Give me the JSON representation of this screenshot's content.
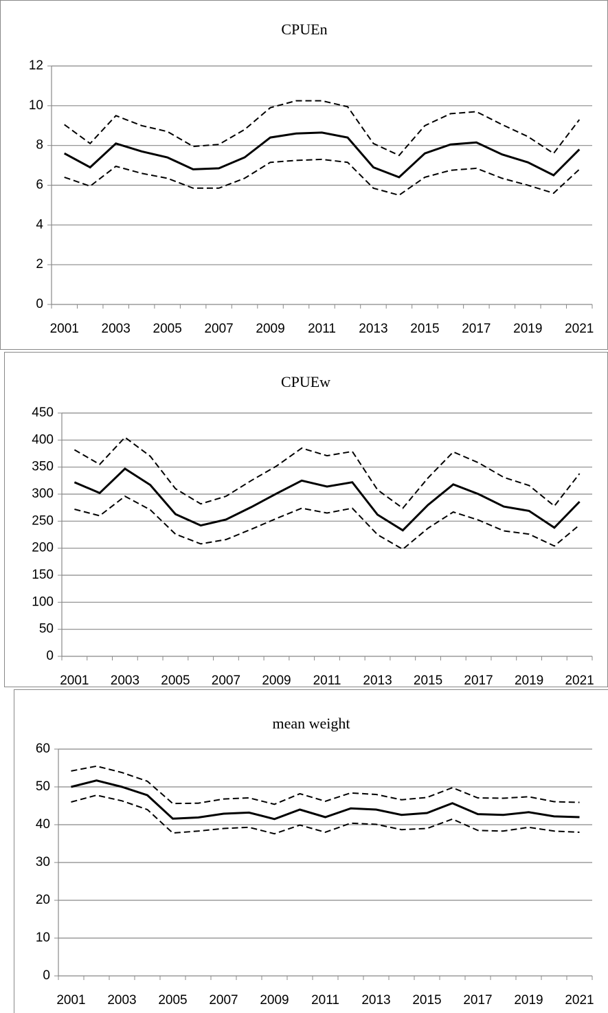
{
  "chart_data": [
    {
      "type": "line",
      "title": "CPUEn",
      "categories": [
        "2001",
        null,
        "2003",
        null,
        "2005",
        null,
        "2007",
        null,
        "2009",
        null,
        "2011",
        null,
        "2013",
        null,
        "2015",
        null,
        "2017",
        null,
        "2019",
        null,
        "2021"
      ],
      "ylim": [
        0,
        12
      ],
      "yticks": [
        0,
        2,
        4,
        6,
        8,
        10,
        12
      ],
      "grid": true,
      "series": [
        {
          "color": "#000000",
          "style": "solid",
          "values": [
            7.6,
            6.9,
            8.1,
            7.7,
            7.4,
            6.8,
            6.85,
            7.4,
            8.4,
            8.6,
            8.65,
            8.4,
            6.9,
            6.4,
            7.6,
            8.05,
            8.15,
            7.55,
            7.15,
            6.5,
            7.8
          ]
        },
        {
          "color": "#000000",
          "style": "dashed",
          "values": [
            9.05,
            8.1,
            9.5,
            9.0,
            8.7,
            7.95,
            8.05,
            8.8,
            9.9,
            10.25,
            10.25,
            9.95,
            8.1,
            7.5,
            9.0,
            9.6,
            9.7,
            9.05,
            8.45,
            7.6,
            9.3
          ]
        },
        {
          "color": "#000000",
          "style": "dashed",
          "values": [
            6.4,
            5.95,
            6.95,
            6.6,
            6.35,
            5.85,
            5.85,
            6.35,
            7.15,
            7.25,
            7.3,
            7.15,
            5.85,
            5.5,
            6.4,
            6.75,
            6.85,
            6.35,
            6.0,
            5.6,
            6.8
          ]
        }
      ]
    },
    {
      "type": "line",
      "title": "CPUEw",
      "categories": [
        "2001",
        null,
        "2003",
        null,
        "2005",
        null,
        "2007",
        null,
        "2009",
        null,
        "2011",
        null,
        "2013",
        null,
        "2015",
        null,
        "2017",
        null,
        "2019",
        null,
        "2021"
      ],
      "ylim": [
        0,
        450
      ],
      "yticks": [
        0,
        50,
        100,
        150,
        200,
        250,
        300,
        350,
        400,
        450
      ],
      "grid": true,
      "series": [
        {
          "color": "#000000",
          "style": "solid",
          "values": [
            322,
            302,
            347,
            317,
            263,
            242,
            253,
            276,
            301,
            325,
            314,
            322,
            262,
            233,
            280,
            318,
            300,
            277,
            269,
            238,
            286
          ]
        },
        {
          "color": "#000000",
          "style": "dashed",
          "values": [
            382,
            355,
            405,
            370,
            310,
            282,
            296,
            325,
            352,
            385,
            371,
            379,
            308,
            274,
            330,
            378,
            358,
            331,
            316,
            278,
            338
          ]
        },
        {
          "color": "#000000",
          "style": "dashed",
          "values": [
            272,
            260,
            296,
            271,
            226,
            208,
            216,
            235,
            255,
            274,
            265,
            274,
            225,
            198,
            237,
            267,
            252,
            232,
            226,
            204,
            243
          ]
        }
      ]
    },
    {
      "type": "line",
      "title": "mean weight",
      "categories": [
        "2001",
        null,
        "2003",
        null,
        "2005",
        null,
        "2007",
        null,
        "2009",
        null,
        "2011",
        null,
        "2013",
        null,
        "2015",
        null,
        "2017",
        null,
        "2019",
        null,
        "2021"
      ],
      "ylim": [
        0,
        60
      ],
      "yticks": [
        0,
        10,
        20,
        30,
        40,
        50,
        60
      ],
      "grid": true,
      "series": [
        {
          "color": "#000000",
          "style": "solid",
          "values": [
            50,
            51.7,
            50.0,
            47.8,
            41.6,
            41.9,
            42.9,
            43.2,
            41.5,
            44.0,
            42.0,
            44.3,
            44.0,
            42.6,
            43.1,
            45.7,
            42.8,
            42.6,
            43.3,
            42.2,
            42.0
          ]
        },
        {
          "color": "#000000",
          "style": "dashed",
          "values": [
            54.2,
            55.5,
            53.8,
            51.5,
            45.6,
            45.7,
            46.8,
            47.1,
            45.4,
            48.2,
            46.2,
            48.4,
            48.0,
            46.6,
            47.2,
            49.8,
            47.1,
            47.0,
            47.4,
            46.1,
            45.9
          ]
        },
        {
          "color": "#000000",
          "style": "dashed",
          "values": [
            46.0,
            47.8,
            46.3,
            44.0,
            37.8,
            38.3,
            39.0,
            39.3,
            37.6,
            39.9,
            38.0,
            40.4,
            40.1,
            38.7,
            39.0,
            41.5,
            38.5,
            38.3,
            39.3,
            38.3,
            38.0
          ]
        }
      ]
    }
  ]
}
